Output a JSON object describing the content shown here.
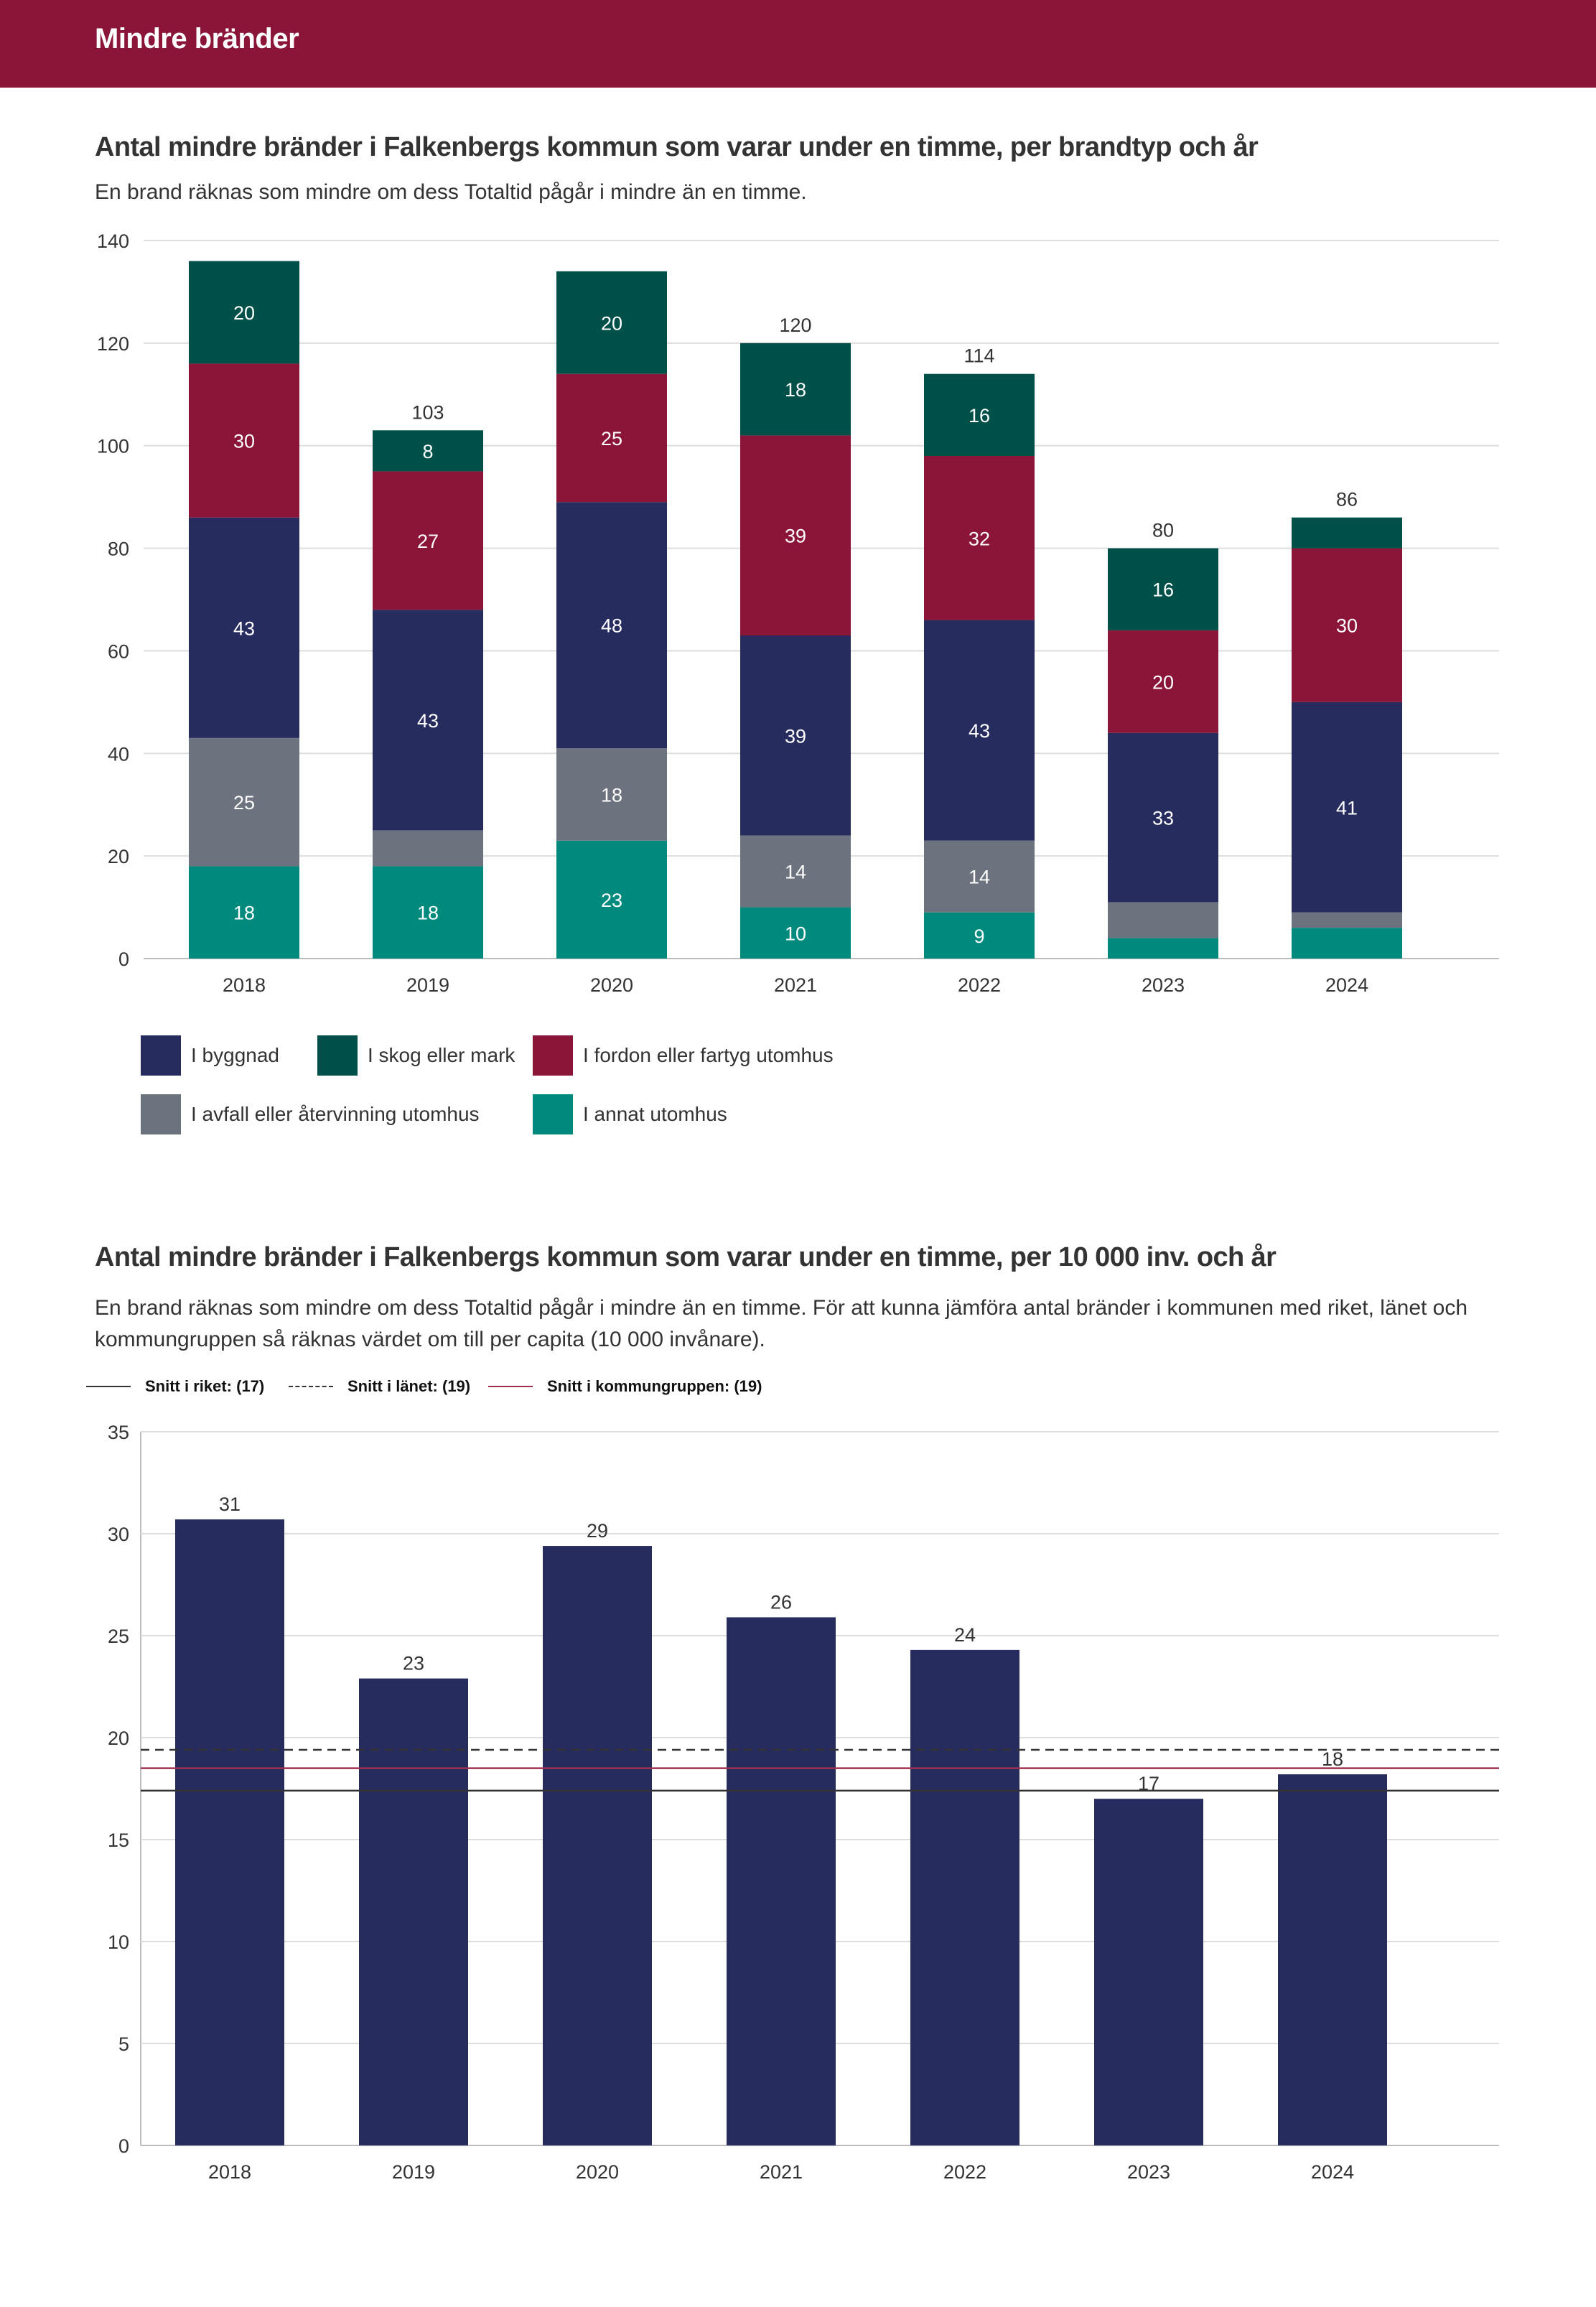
{
  "header": {
    "title": "Mindre bränder"
  },
  "chart1": {
    "title": "Antal mindre bränder i Falkenbergs kommun som varar under en timme, per brandtyp och år",
    "description": "En brand räknas som mindre om dess Totaltid pågår i mindre än en timme."
  },
  "chart2": {
    "title": "Antal mindre bränder i Falkenbergs kommun som varar under en timme, per 10 000 inv. och år",
    "description": "En brand räknas som mindre om dess Totaltid pågår i mindre än en timme. För att kunna jämföra antal bränder i kommunen med riket, länet och kommungruppen så räknas värdet om till per capita (10 000 invånare)."
  },
  "legend1": [
    {
      "label": "I byggnad",
      "color": "#262c5e"
    },
    {
      "label": "I skog eller mark",
      "color": "#00504a"
    },
    {
      "label": "I fordon eller fartyg utomhus",
      "color": "#8b1538"
    },
    {
      "label": "I avfall eller återvinning utomhus",
      "color": "#6d737e"
    },
    {
      "label": "I annat utomhus",
      "color": "#008a7e"
    }
  ],
  "ref_legend": [
    {
      "label": "Snitt i riket: (17)",
      "color": "#333333",
      "style": "solid"
    },
    {
      "label": "Snitt i länet: (19)",
      "color": "#333333",
      "style": "dashed"
    },
    {
      "label": "Snitt i kommungruppen: (19)",
      "color": "#a0304f",
      "style": "solid"
    }
  ],
  "chart_data": [
    {
      "type": "bar",
      "stacked": true,
      "title": "Antal mindre bränder i Falkenbergs kommun som varar under en timme, per brandtyp och år",
      "subtitle": "En brand räknas som mindre om dess Totaltid pågår i mindre än en timme.",
      "categories": [
        "2018",
        "2019",
        "2020",
        "2021",
        "2022",
        "2023",
        "2024"
      ],
      "ylim": [
        0,
        140
      ],
      "yticks": [
        0,
        20,
        40,
        60,
        80,
        100,
        120,
        140
      ],
      "grid": true,
      "legend_position": "bottom",
      "totals": [
        "",
        "103",
        "",
        "120",
        "114",
        "80",
        "86"
      ],
      "series": [
        {
          "name": "I annat utomhus",
          "color": "#008a7e",
          "values": [
            18,
            18,
            23,
            10,
            9,
            4,
            6
          ],
          "labels": [
            "18",
            "18",
            "23",
            "10",
            "9",
            "",
            ""
          ]
        },
        {
          "name": "I avfall eller återvinning utomhus",
          "color": "#6d737e",
          "values": [
            25,
            7,
            18,
            14,
            14,
            7,
            3
          ],
          "labels": [
            "25",
            "",
            "18",
            "14",
            "14",
            "",
            ""
          ]
        },
        {
          "name": "I byggnad",
          "color": "#262c5e",
          "values": [
            43,
            43,
            48,
            39,
            43,
            33,
            41
          ],
          "labels": [
            "43",
            "43",
            "48",
            "39",
            "43",
            "33",
            "41"
          ]
        },
        {
          "name": "I fordon eller fartyg utomhus",
          "color": "#8b1538",
          "values": [
            30,
            27,
            25,
            39,
            32,
            20,
            30
          ],
          "labels": [
            "30",
            "27",
            "25",
            "39",
            "32",
            "20",
            "30"
          ]
        },
        {
          "name": "I skog eller mark",
          "color": "#00504a",
          "values": [
            20,
            8,
            20,
            18,
            16,
            16,
            6
          ],
          "labels": [
            "20",
            "8",
            "20",
            "18",
            "16",
            "16",
            ""
          ]
        }
      ]
    },
    {
      "type": "bar",
      "title": "Antal mindre bränder i Falkenbergs kommun som varar under en timme, per 10 000 inv. och år",
      "subtitle": "En brand räknas som mindre om dess Totaltid pågår i mindre än en timme. För att kunna jämföra antal bränder i kommunen med riket, länet och kommungruppen så räknas värdet om till per capita (10 000 invånare).",
      "categories": [
        "2018",
        "2019",
        "2020",
        "2021",
        "2022",
        "2023",
        "2024"
      ],
      "values": [
        30.7,
        22.9,
        29.4,
        25.9,
        24.3,
        17.0,
        18.2
      ],
      "labels": [
        "31",
        "23",
        "29",
        "26",
        "24",
        "17",
        "18"
      ],
      "color": "#262c5e",
      "ylim": [
        0,
        35
      ],
      "yticks": [
        0,
        5,
        10,
        15,
        20,
        25,
        30,
        35
      ],
      "grid": true,
      "reference_lines": [
        {
          "name": "Snitt i riket: (17)",
          "value": 17.4,
          "color": "#333333",
          "style": "solid"
        },
        {
          "name": "Snitt i länet: (19)",
          "value": 19.4,
          "color": "#333333",
          "style": "dashed"
        },
        {
          "name": "Snitt i kommungruppen: (19)",
          "value": 18.5,
          "color": "#a0304f",
          "style": "solid"
        }
      ]
    }
  ]
}
